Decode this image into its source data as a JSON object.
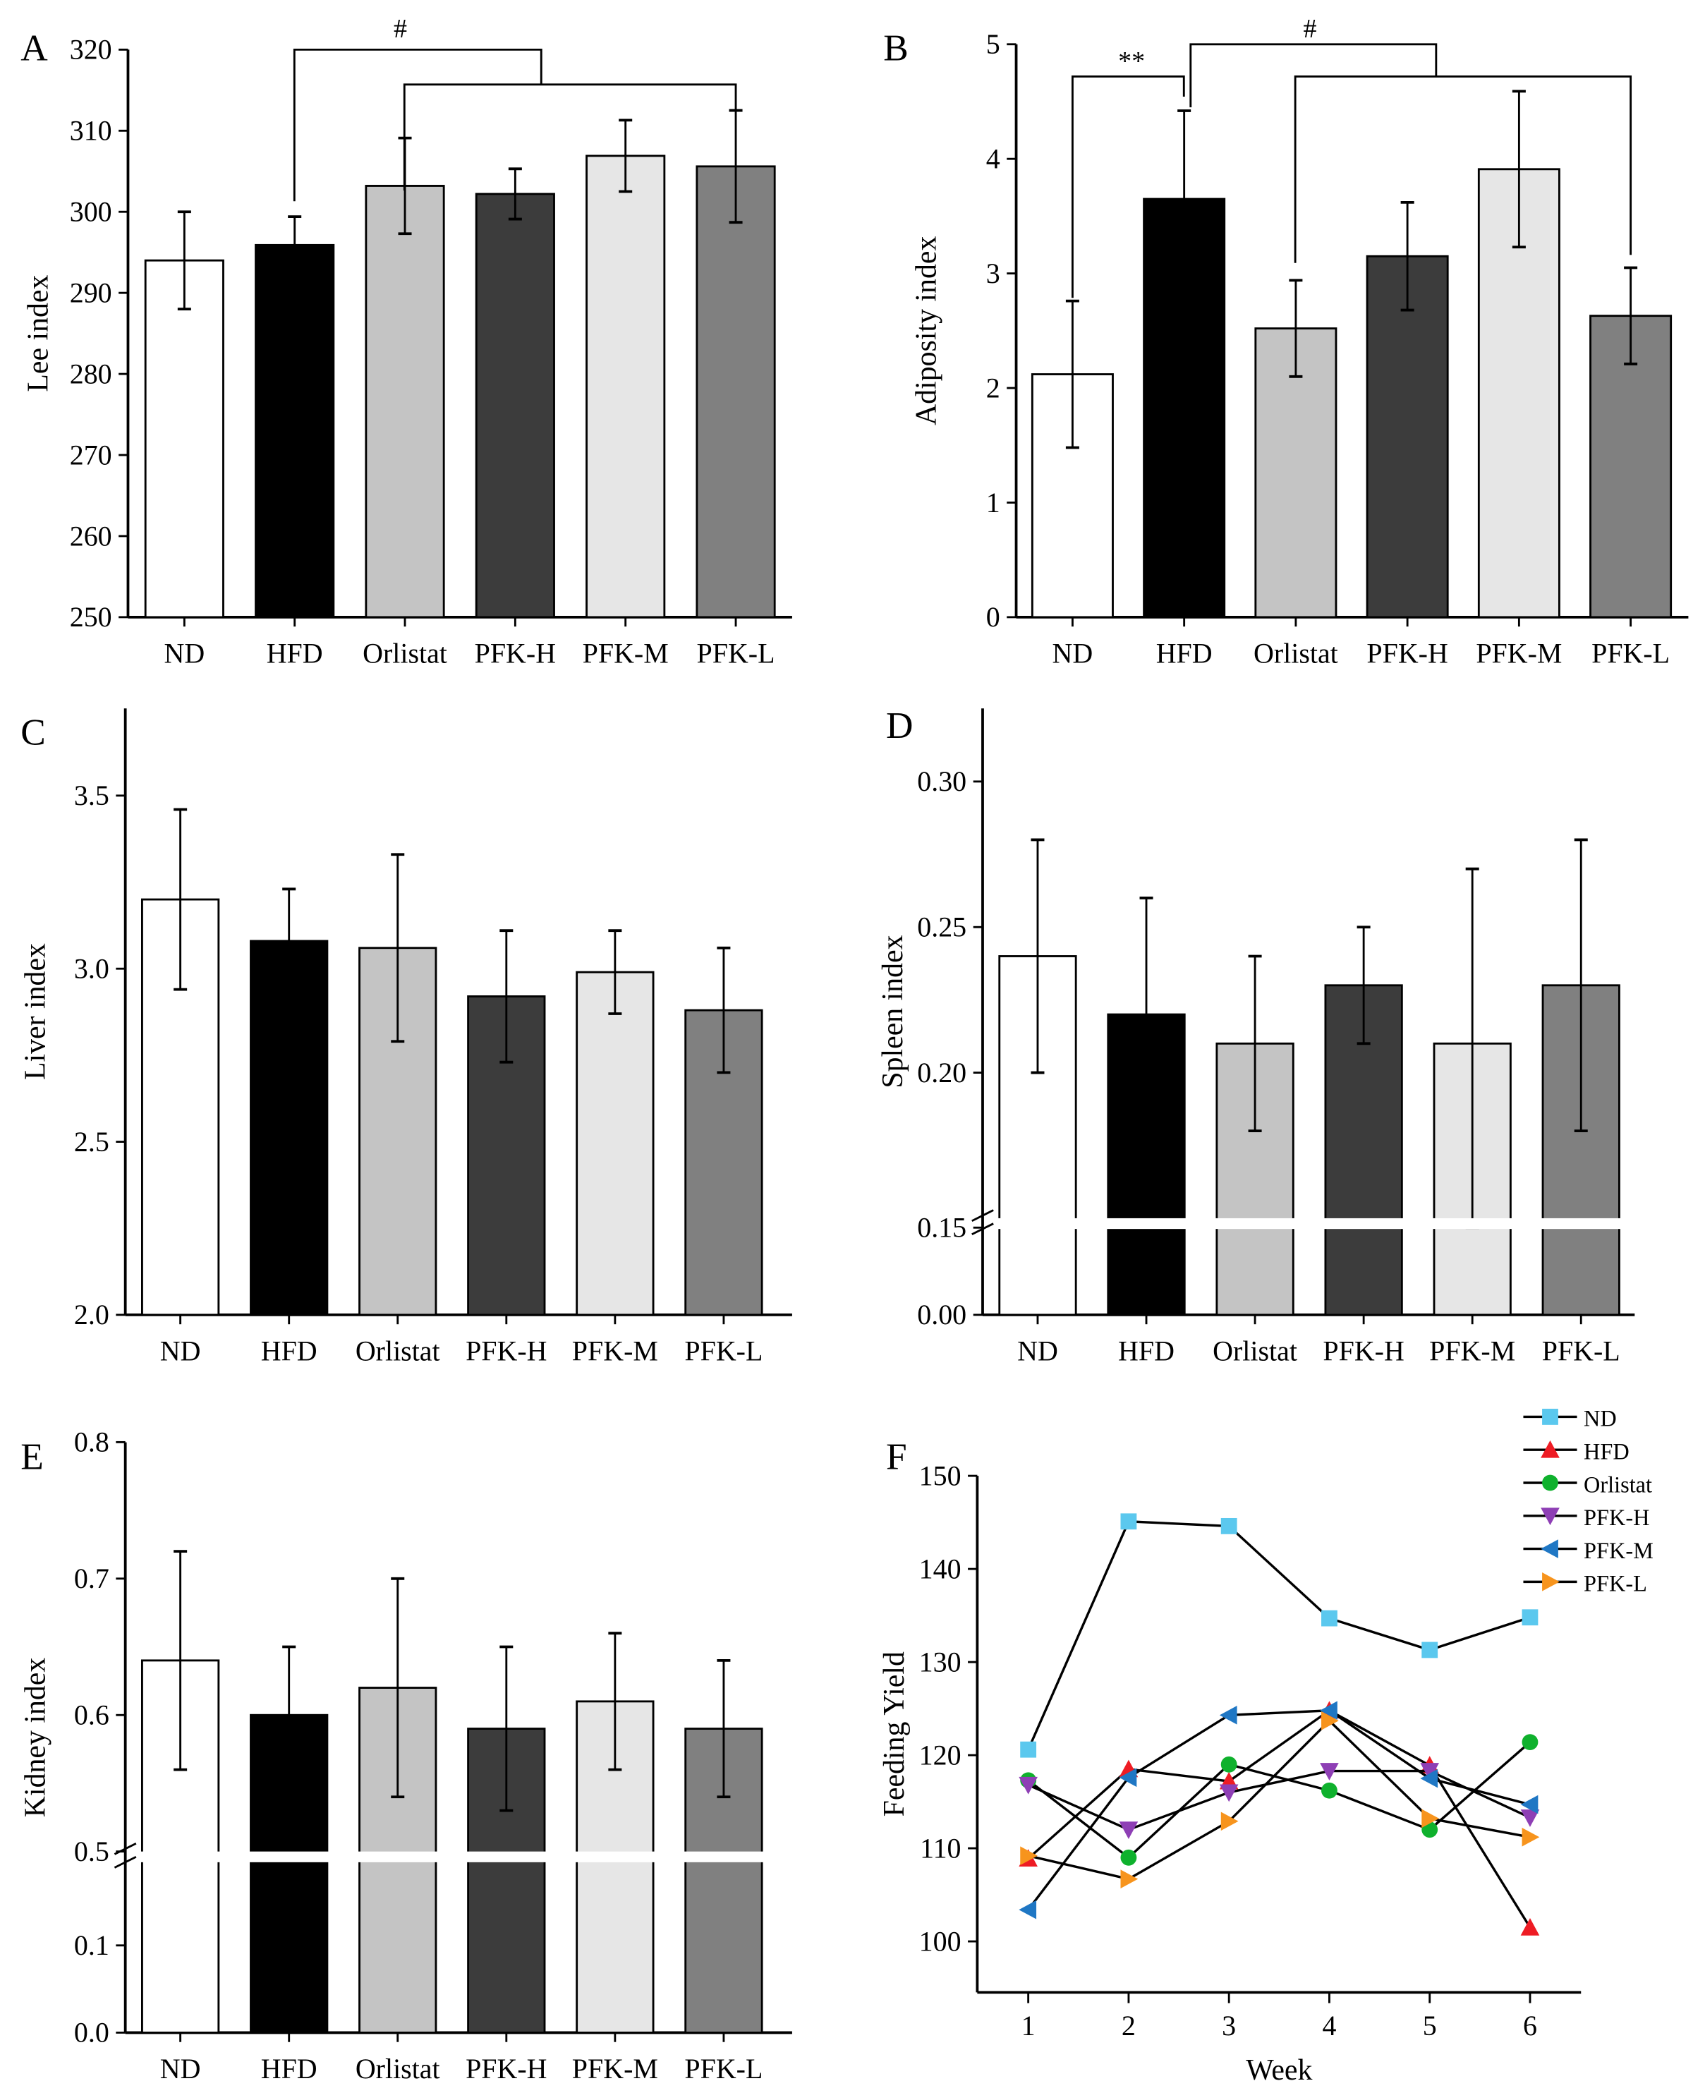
{
  "chart_data": [
    {
      "panel": "A",
      "type": "bar",
      "ylabel": "Lee index",
      "categories": [
        "ND",
        "HFD",
        "Orlistat",
        "PFK-H",
        "PFK-M",
        "PFK-L"
      ],
      "values": [
        294.0,
        295.9,
        303.2,
        302.2,
        306.9,
        305.6
      ],
      "errors": [
        6.0,
        3.5,
        5.9,
        3.1,
        4.4,
        6.9
      ],
      "ylim": [
        250,
        320
      ],
      "yticks": [
        250,
        260,
        270,
        280,
        290,
        300,
        310,
        320
      ],
      "annotations": [
        {
          "text": "#",
          "from": "HFD",
          "to": [
            "Orlistat",
            "PFK-L"
          ]
        }
      ]
    },
    {
      "panel": "B",
      "type": "bar",
      "ylabel": "Adiposity index",
      "categories": [
        "ND",
        "HFD",
        "Orlistat",
        "PFK-H",
        "PFK-M",
        "PFK-L"
      ],
      "values": [
        2.12,
        3.65,
        2.52,
        3.15,
        3.91,
        2.63
      ],
      "errors": [
        0.64,
        0.77,
        0.42,
        0.47,
        0.68,
        0.42
      ],
      "ylim": [
        0,
        5
      ],
      "yticks": [
        0,
        1,
        2,
        3,
        4,
        5
      ],
      "annotations": [
        {
          "text": "**",
          "from": "ND",
          "to": [
            "HFD"
          ]
        },
        {
          "text": "#",
          "from": "HFD",
          "to": [
            "Orlistat",
            "PFK-L"
          ]
        }
      ]
    },
    {
      "panel": "C",
      "type": "bar",
      "ylabel": "Liver index",
      "categories": [
        "ND",
        "HFD",
        "Orlistat",
        "PFK-H",
        "PFK-M",
        "PFK-L"
      ],
      "values": [
        3.2,
        3.08,
        3.06,
        2.92,
        2.99,
        2.88
      ],
      "errors": [
        0.26,
        0.15,
        0.27,
        0.19,
        0.12,
        0.18
      ],
      "ylim": [
        2.0,
        3.75
      ],
      "yticks": [
        "2.0",
        "2.5",
        "3.0",
        "3.5"
      ]
    },
    {
      "panel": "D",
      "type": "bar",
      "ylabel": "Spleen index",
      "categories": [
        "ND",
        "HFD",
        "Orlistat",
        "PFK-H",
        "PFK-M",
        "PFK-L"
      ],
      "values": [
        0.24,
        0.22,
        0.21,
        0.23,
        0.21,
        0.23
      ],
      "errors": [
        0.04,
        0.04,
        0.03,
        0.02,
        0.06,
        0.05
      ],
      "ylim": [
        0,
        0.32
      ],
      "axis_break": [
        0.0,
        0.15
      ],
      "yticks": [
        "0.00",
        "0.15",
        "0.20",
        "0.25",
        "0.30"
      ]
    },
    {
      "panel": "E",
      "type": "bar",
      "ylabel": "Kidney index",
      "categories": [
        "ND",
        "HFD",
        "Orlistat",
        "PFK-H",
        "PFK-M",
        "PFK-L"
      ],
      "values": [
        0.64,
        0.6,
        0.62,
        0.59,
        0.61,
        0.59
      ],
      "errors": [
        0.08,
        0.05,
        0.08,
        0.06,
        0.05,
        0.05
      ],
      "ylim": [
        0,
        0.8
      ],
      "axis_break": [
        0.15,
        0.5
      ],
      "yticks": [
        "0.0",
        "0.1",
        "0.5",
        "0.6",
        "0.7",
        "0.8"
      ]
    },
    {
      "panel": "F",
      "type": "line",
      "xlabel": "Week",
      "ylabel": "Feeding Yield",
      "x": [
        1,
        2,
        3,
        4,
        5,
        6
      ],
      "xticks": [
        "1",
        "2",
        "3",
        "4",
        "5",
        "6"
      ],
      "ylim": [
        94.5,
        150
      ],
      "yticks": [
        "100",
        "110",
        "120",
        "130",
        "140",
        "150"
      ],
      "legend": "top-right",
      "series": [
        {
          "name": "ND",
          "marker": "square",
          "color": "#5bc8ee",
          "values": [
            120.6,
            145.1,
            144.6,
            134.7,
            131.3,
            134.8
          ]
        },
        {
          "name": "HFD",
          "marker": "triangle-up",
          "color": "#ee1c24",
          "values": [
            108.9,
            118.5,
            117.2,
            124.8,
            118.9,
            101.5
          ]
        },
        {
          "name": "Orlistat",
          "marker": "circle",
          "color": "#0fb12d",
          "values": [
            117.3,
            109.0,
            119.0,
            116.2,
            112.0,
            121.4
          ]
        },
        {
          "name": "PFK-H",
          "marker": "triangle-down",
          "color": "#8e3fb5",
          "values": [
            116.8,
            112.0,
            116.0,
            118.3,
            118.3,
            113.3
          ]
        },
        {
          "name": "PFK-M",
          "marker": "triangle-left",
          "color": "#1f77c4",
          "values": [
            103.4,
            117.6,
            124.3,
            124.8,
            117.5,
            114.7
          ]
        },
        {
          "name": "PFK-L",
          "marker": "triangle-right",
          "color": "#f7941d",
          "values": [
            109.2,
            106.7,
            112.9,
            123.7,
            113.2,
            111.2
          ]
        }
      ]
    }
  ],
  "bar_colors": [
    "#ffffff",
    "#000000",
    "#c4c4c4",
    "#3c3c3c",
    "#e6e6e6",
    "#808080"
  ]
}
